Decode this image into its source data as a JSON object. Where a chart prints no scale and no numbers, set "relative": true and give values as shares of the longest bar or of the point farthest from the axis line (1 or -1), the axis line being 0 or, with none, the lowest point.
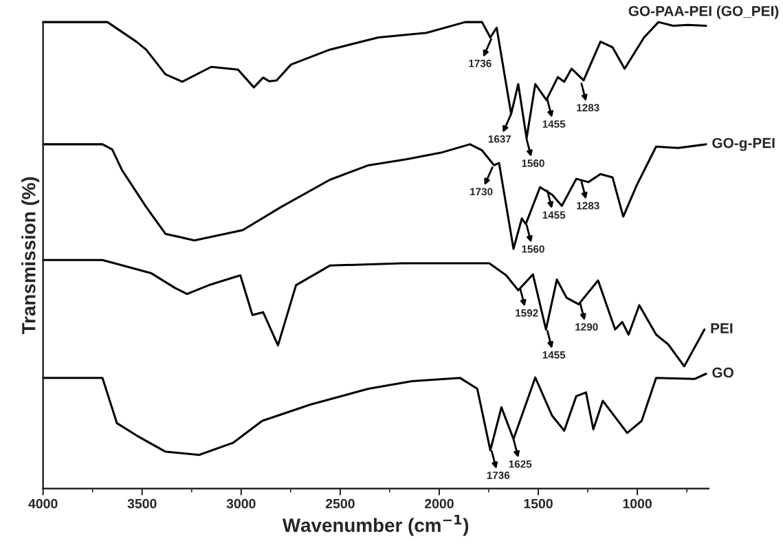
{
  "chart_data": {
    "type": "line",
    "relative": true,
    "xlabel": "Wavenumber (cm$^{−1}$)",
    "ylabel": "Transmission (%)",
    "xlim": [
      4000,
      640
    ],
    "xticks": [
      4000,
      3500,
      3000,
      2500,
      2000,
      1500,
      1000
    ],
    "grid": false,
    "legend": false,
    "series": [
      {
        "name": "GO-PAA-PEI (GO_PEI)",
        "color": "#000000",
        "x": [
          4000,
          3675,
          3529,
          3480,
          3382,
          3297,
          3151,
          3016,
          2936,
          2889,
          2858,
          2821,
          2748,
          2552,
          2308,
          2064,
          1869,
          1784,
          1742,
          1710,
          1637,
          1601,
          1559,
          1515,
          1459,
          1401,
          1369,
          1332,
          1271,
          1186,
          1125,
          1064,
          966,
          893,
          819,
          746,
          653
        ],
        "values": [
          1,
          1,
          0.958,
          0.941,
          0.888,
          0.872,
          0.904,
          0.898,
          0.86,
          0.881,
          0.873,
          0.875,
          0.909,
          0.941,
          0.967,
          0.977,
          1,
          1,
          0.967,
          0.988,
          0.803,
          0.867,
          0.751,
          0.867,
          0.833,
          0.882,
          0.872,
          0.9,
          0.875,
          0.958,
          0.946,
          0.9,
          0.967,
          1,
          0.992,
          0.994,
          0.992
        ]
      },
      {
        "name": "GO-g-PEI",
        "color": "#000000",
        "x": [
          4000,
          3700,
          3651,
          3602,
          3480,
          3382,
          3236,
          2992,
          2797,
          2552,
          2357,
          2162,
          1991,
          1845,
          1784,
          1723,
          1698,
          1625,
          1583,
          1563,
          1491,
          1430,
          1381,
          1308,
          1247,
          1186,
          1125,
          1071,
          1002,
          905,
          795,
          653
        ],
        "values": [
          0.738,
          0.738,
          0.727,
          0.683,
          0.604,
          0.546,
          0.532,
          0.554,
          0.604,
          0.662,
          0.693,
          0.706,
          0.72,
          0.738,
          0.725,
          0.693,
          0.698,
          0.514,
          0.579,
          0.567,
          0.646,
          0.63,
          0.606,
          0.664,
          0.657,
          0.674,
          0.667,
          0.583,
          0.651,
          0.733,
          0.73,
          0.738
        ]
      },
      {
        "name": "PEI",
        "color": "#000000",
        "x": [
          4000,
          3700,
          3456,
          3334,
          3273,
          3163,
          3004,
          2943,
          2889,
          2814,
          2723,
          2552,
          2186,
          1747,
          1662,
          1601,
          1527,
          1461,
          1406,
          1357,
          1296,
          1198,
          1112,
          1076,
          1044,
          990,
          905,
          844,
          763,
          661
        ],
        "values": [
          0.49,
          0.49,
          0.462,
          0.43,
          0.417,
          0.436,
          0.457,
          0.372,
          0.378,
          0.307,
          0.436,
          0.478,
          0.483,
          0.483,
          0.457,
          0.425,
          0.459,
          0.341,
          0.448,
          0.409,
          0.395,
          0.446,
          0.341,
          0.357,
          0.33,
          0.393,
          0.33,
          0.309,
          0.262,
          0.341
        ]
      },
      {
        "name": "GO",
        "color": "#000000",
        "x": [
          4000,
          3700,
          3627,
          3529,
          3382,
          3212,
          3041,
          2894,
          2650,
          2357,
          2138,
          1894,
          1808,
          1742,
          1686,
          1625,
          1515,
          1430,
          1369,
          1308,
          1259,
          1222,
          1174,
          1051,
          978,
          905,
          710,
          653
        ],
        "values": [
          0.237,
          0.237,
          0.14,
          0.114,
          0.079,
          0.072,
          0.098,
          0.145,
          0.18,
          0.214,
          0.23,
          0.237,
          0.214,
          0.082,
          0.174,
          0.106,
          0.238,
          0.156,
          0.124,
          0.198,
          0.206,
          0.127,
          0.188,
          0.119,
          0.145,
          0.237,
          0.235,
          0.246
        ]
      }
    ],
    "annotations": [
      {
        "text": "1736",
        "x": 1736,
        "y": 0.965
      },
      {
        "text": "1637",
        "x": 1637,
        "y": 0.803
      },
      {
        "text": "1560",
        "x": 1560,
        "y": 0.751
      },
      {
        "text": "1455",
        "x": 1455,
        "y": 0.835
      },
      {
        "text": "1283",
        "x": 1283,
        "y": 0.87
      },
      {
        "text": "1730",
        "x": 1730,
        "y": 0.69
      },
      {
        "text": "1560",
        "x": 1560,
        "y": 0.567
      },
      {
        "text": "1455",
        "x": 1455,
        "y": 0.64
      },
      {
        "text": "1283",
        "x": 1283,
        "y": 0.66
      },
      {
        "text": "1592",
        "x": 1592,
        "y": 0.43
      },
      {
        "text": "1455",
        "x": 1455,
        "y": 0.34
      },
      {
        "text": "1290",
        "x": 1290,
        "y": 0.4
      },
      {
        "text": "1736",
        "x": 1736,
        "y": 0.082
      },
      {
        "text": "1625",
        "x": 1625,
        "y": 0.106
      }
    ]
  }
}
